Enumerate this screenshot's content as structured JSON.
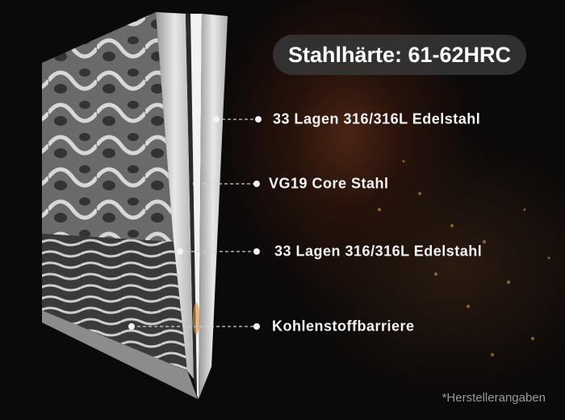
{
  "hardness_badge": "Stahlhärte: 61-62HRC",
  "layers": [
    {
      "label": "33 Lagen 316/316L Edelstahl"
    },
    {
      "label": "VG19 Core Stahl"
    },
    {
      "label": "33 Lagen 316/316L Edelstahl"
    },
    {
      "label": "Kohlenstoffbarriere"
    }
  ],
  "footnote": "*Herstellerangaben",
  "colors": {
    "background": "#0b0909",
    "text": "#f4f4f4",
    "badge": "#373737",
    "footnote": "#9a9a9a"
  }
}
